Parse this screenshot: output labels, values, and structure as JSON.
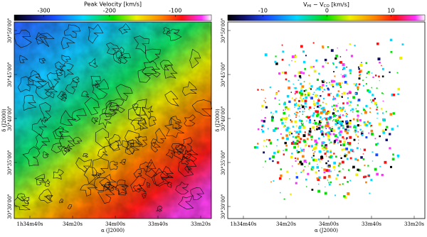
{
  "chart_data": [
    {
      "type": "map",
      "title": "Peak Velocity [km/s]",
      "clim": [
        -345,
        -45
      ],
      "cticks": [
        -300,
        -200,
        -100
      ],
      "xlabel": "α (J2000)",
      "ylabel": "δ (J2000)",
      "xticklabels": [
        "1h34m40s",
        "34m20s",
        "34m00s",
        "33m40s",
        "33m20s"
      ],
      "yticklabels": [
        "30°50'00\"",
        "30°45'00\"",
        "30°40'00\"",
        "30°35'00\"",
        "30°30'00\""
      ]
    },
    {
      "type": "map",
      "title": [
        "V",
        "HI",
        " − V",
        "CO",
        " [km/s]"
      ],
      "clim": [
        -15.5,
        15.3
      ],
      "cticks": [
        -10,
        0,
        10
      ],
      "xlabel": "α (J2000)",
      "ylabel": "δ (J2000)",
      "xticklabels": [
        "1h34m40s",
        "34m20s",
        "34m00s",
        "33m40s",
        "33m20s"
      ],
      "yticklabels": [
        "30°50'00\"",
        "30°45'00\"",
        "30°40'00\"",
        "30°35'00\"",
        "30°30'00\""
      ]
    }
  ]
}
